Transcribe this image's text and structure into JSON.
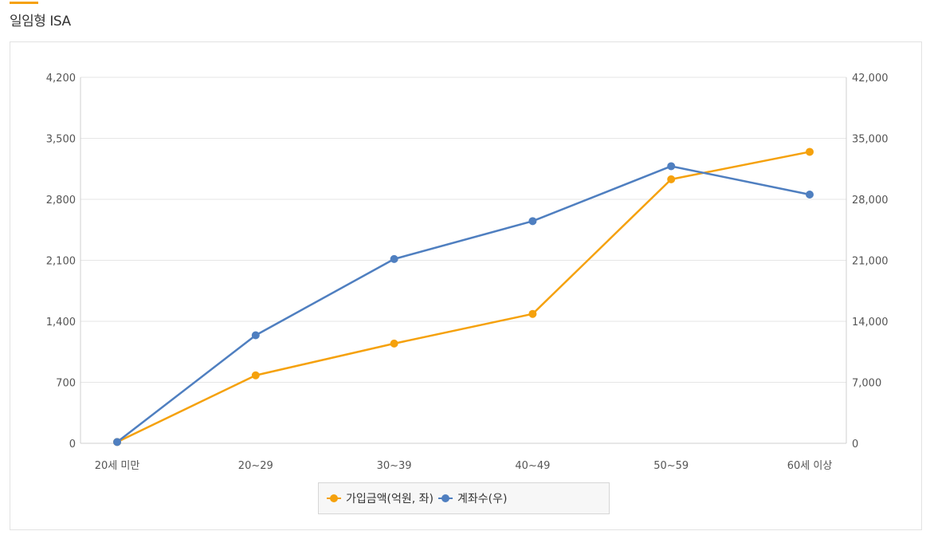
{
  "header": {
    "title": "일임형 ISA"
  },
  "colors": {
    "accent": "#f5a10c",
    "series_amount": "#f5a10c",
    "series_accounts": "#4f7fc0",
    "grid": "#e6e6e6"
  },
  "chart_data": {
    "type": "line",
    "categories": [
      "20세 미만",
      "20~29",
      "30~39",
      "40~49",
      "50~59",
      "60세 이상"
    ],
    "series": [
      {
        "name": "가입금액(억원, 좌)",
        "axis": "left",
        "color": "#f5a10c",
        "values": [
          15,
          780,
          1145,
          1485,
          3030,
          3345
        ]
      },
      {
        "name": "계좌수(우)",
        "axis": "right",
        "color": "#4f7fc0",
        "values": [
          150,
          12400,
          21150,
          25500,
          31800,
          28550
        ]
      }
    ],
    "y_left": {
      "ylim": [
        0,
        4200
      ],
      "ticks": [
        "0",
        "700",
        "1,400",
        "2,100",
        "2,800",
        "3,500",
        "4,200"
      ]
    },
    "y_right": {
      "ylim": [
        0,
        42000
      ],
      "ticks": [
        "0",
        "7,000",
        "14,000",
        "21,000",
        "28,000",
        "35,000",
        "42,000"
      ]
    },
    "grid": true,
    "legend_position": "bottom"
  }
}
